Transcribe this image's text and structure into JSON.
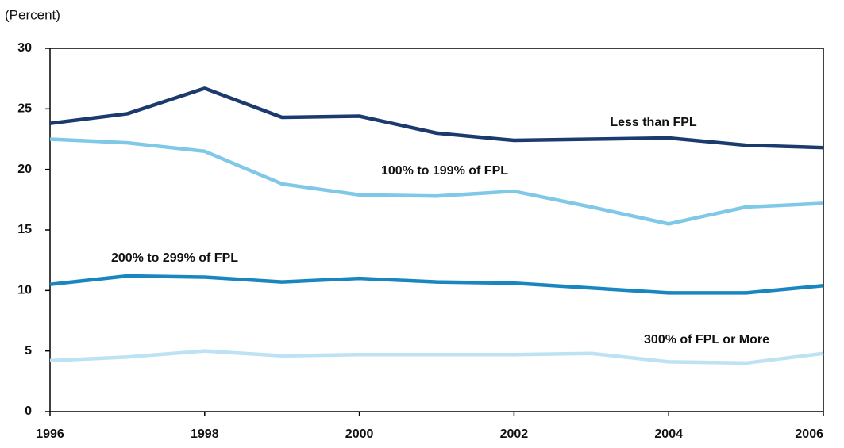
{
  "chart_data": {
    "type": "line",
    "y_axis_label": "(Percent)",
    "x": [
      1996,
      1997,
      1998,
      1999,
      2000,
      2001,
      2002,
      2003,
      2004,
      2005,
      2006
    ],
    "xlim": [
      1996,
      2006
    ],
    "xticks": [
      1996,
      1998,
      2000,
      2002,
      2004,
      2006
    ],
    "ylim": [
      0,
      30
    ],
    "yticks": [
      0,
      5,
      10,
      15,
      20,
      25,
      30
    ],
    "grid": false,
    "series": [
      {
        "name": "Less than FPL",
        "color": "#1b3a6d",
        "values": [
          23.8,
          24.6,
          26.7,
          24.3,
          24.4,
          23.0,
          22.4,
          22.5,
          22.6,
          22.0,
          21.8
        ]
      },
      {
        "name": "100% to 199% of FPL",
        "color": "#7fc8e8",
        "values": [
          22.5,
          22.2,
          21.5,
          18.8,
          17.9,
          17.8,
          18.2,
          16.9,
          15.5,
          16.9,
          17.2
        ]
      },
      {
        "name": "200% to 299% of FPL",
        "color": "#1a86c0",
        "values": [
          10.5,
          11.2,
          11.1,
          10.7,
          11.0,
          10.7,
          10.6,
          10.2,
          9.8,
          9.8,
          10.4
        ]
      },
      {
        "name": "300% of FPL or More",
        "color": "#bce2f3",
        "values": [
          4.2,
          4.5,
          5.0,
          4.6,
          4.7,
          4.7,
          4.7,
          4.8,
          4.1,
          4.0,
          4.8
        ]
      }
    ]
  }
}
